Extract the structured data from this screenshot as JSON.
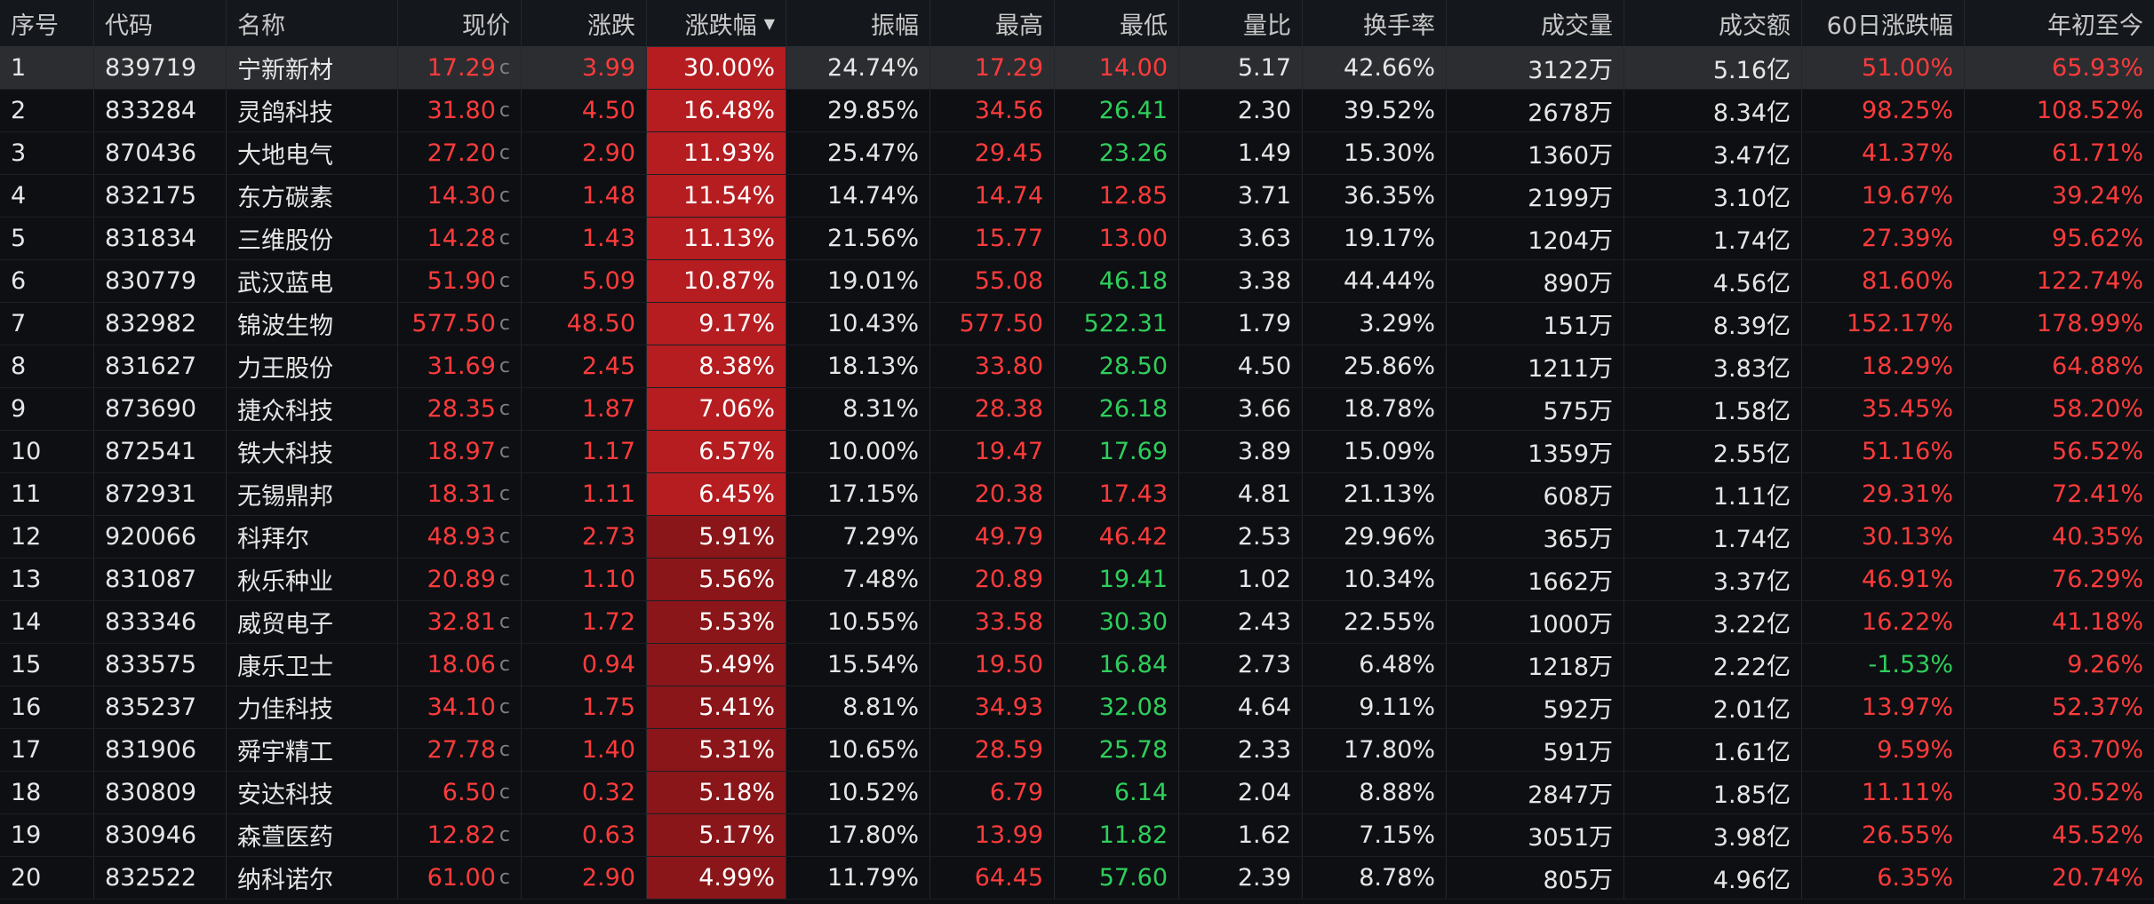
{
  "headers": {
    "idx": "序号",
    "code": "代码",
    "name": "名称",
    "price": "现价",
    "change": "涨跌",
    "pct": "涨跌幅",
    "amplitude": "振幅",
    "high": "最高",
    "low": "最低",
    "vol_ratio": "量比",
    "turnover": "换手率",
    "volume": "成交量",
    "amount": "成交额",
    "d60": "60日涨跌幅",
    "ytd": "年初至今"
  },
  "price_suffix": "c",
  "colors": {
    "up": "#ff3b3b",
    "down": "#2fcf5b",
    "pct_strong_bg": "#b51d21",
    "pct_mid_bg": "#8a161a",
    "selected_row_bg": "#2b2d31"
  },
  "rows": [
    {
      "idx": "1",
      "code": "839719",
      "name": "宁新新材",
      "price": "17.29",
      "change": "3.99",
      "pct": "30.00%",
      "amplitude": "24.74%",
      "high": "17.29",
      "low": "14.00",
      "vol_ratio": "5.17",
      "turnover": "42.66%",
      "volume": "3122万",
      "amount": "5.16亿",
      "d60": "51.00%",
      "ytd": "65.93%"
    },
    {
      "idx": "2",
      "code": "833284",
      "name": "灵鸽科技",
      "price": "31.80",
      "change": "4.50",
      "pct": "16.48%",
      "amplitude": "29.85%",
      "high": "34.56",
      "low": "26.41",
      "vol_ratio": "2.30",
      "turnover": "39.52%",
      "volume": "2678万",
      "amount": "8.34亿",
      "d60": "98.25%",
      "ytd": "108.52%"
    },
    {
      "idx": "3",
      "code": "870436",
      "name": "大地电气",
      "price": "27.20",
      "change": "2.90",
      "pct": "11.93%",
      "amplitude": "25.47%",
      "high": "29.45",
      "low": "23.26",
      "vol_ratio": "1.49",
      "turnover": "15.30%",
      "volume": "1360万",
      "amount": "3.47亿",
      "d60": "41.37%",
      "ytd": "61.71%"
    },
    {
      "idx": "4",
      "code": "832175",
      "name": "东方碳素",
      "price": "14.30",
      "change": "1.48",
      "pct": "11.54%",
      "amplitude": "14.74%",
      "high": "14.74",
      "low": "12.85",
      "vol_ratio": "3.71",
      "turnover": "36.35%",
      "volume": "2199万",
      "amount": "3.10亿",
      "d60": "19.67%",
      "ytd": "39.24%"
    },
    {
      "idx": "5",
      "code": "831834",
      "name": "三维股份",
      "price": "14.28",
      "change": "1.43",
      "pct": "11.13%",
      "amplitude": "21.56%",
      "high": "15.77",
      "low": "13.00",
      "vol_ratio": "3.63",
      "turnover": "19.17%",
      "volume": "1204万",
      "amount": "1.74亿",
      "d60": "27.39%",
      "ytd": "95.62%"
    },
    {
      "idx": "6",
      "code": "830779",
      "name": "武汉蓝电",
      "price": "51.90",
      "change": "5.09",
      "pct": "10.87%",
      "amplitude": "19.01%",
      "high": "55.08",
      "low": "46.18",
      "vol_ratio": "3.38",
      "turnover": "44.44%",
      "volume": "890万",
      "amount": "4.56亿",
      "d60": "81.60%",
      "ytd": "122.74%"
    },
    {
      "idx": "7",
      "code": "832982",
      "name": "锦波生物",
      "price": "577.50",
      "change": "48.50",
      "pct": "9.17%",
      "amplitude": "10.43%",
      "high": "577.50",
      "low": "522.31",
      "vol_ratio": "1.79",
      "turnover": "3.29%",
      "volume": "151万",
      "amount": "8.39亿",
      "d60": "152.17%",
      "ytd": "178.99%"
    },
    {
      "idx": "8",
      "code": "831627",
      "name": "力王股份",
      "price": "31.69",
      "change": "2.45",
      "pct": "8.38%",
      "amplitude": "18.13%",
      "high": "33.80",
      "low": "28.50",
      "vol_ratio": "4.50",
      "turnover": "25.86%",
      "volume": "1211万",
      "amount": "3.83亿",
      "d60": "18.29%",
      "ytd": "64.88%"
    },
    {
      "idx": "9",
      "code": "873690",
      "name": "捷众科技",
      "price": "28.35",
      "change": "1.87",
      "pct": "7.06%",
      "amplitude": "8.31%",
      "high": "28.38",
      "low": "26.18",
      "vol_ratio": "3.66",
      "turnover": "18.78%",
      "volume": "575万",
      "amount": "1.58亿",
      "d60": "35.45%",
      "ytd": "58.20%"
    },
    {
      "idx": "10",
      "code": "872541",
      "name": "铁大科技",
      "price": "18.97",
      "change": "1.17",
      "pct": "6.57%",
      "amplitude": "10.00%",
      "high": "19.47",
      "low": "17.69",
      "vol_ratio": "3.89",
      "turnover": "15.09%",
      "volume": "1359万",
      "amount": "2.55亿",
      "d60": "51.16%",
      "ytd": "56.52%"
    },
    {
      "idx": "11",
      "code": "872931",
      "name": "无锡鼎邦",
      "price": "18.31",
      "change": "1.11",
      "pct": "6.45%",
      "amplitude": "17.15%",
      "high": "20.38",
      "low": "17.43",
      "vol_ratio": "4.81",
      "turnover": "21.13%",
      "volume": "608万",
      "amount": "1.11亿",
      "d60": "29.31%",
      "ytd": "72.41%"
    },
    {
      "idx": "12",
      "code": "920066",
      "name": "科拜尔",
      "price": "48.93",
      "change": "2.73",
      "pct": "5.91%",
      "amplitude": "7.29%",
      "high": "49.79",
      "low": "46.42",
      "vol_ratio": "2.53",
      "turnover": "29.96%",
      "volume": "365万",
      "amount": "1.74亿",
      "d60": "30.13%",
      "ytd": "40.35%"
    },
    {
      "idx": "13",
      "code": "831087",
      "name": "秋乐种业",
      "price": "20.89",
      "change": "1.10",
      "pct": "5.56%",
      "amplitude": "7.48%",
      "high": "20.89",
      "low": "19.41",
      "vol_ratio": "1.02",
      "turnover": "10.34%",
      "volume": "1662万",
      "amount": "3.37亿",
      "d60": "46.91%",
      "ytd": "76.29%"
    },
    {
      "idx": "14",
      "code": "833346",
      "name": "威贸电子",
      "price": "32.81",
      "change": "1.72",
      "pct": "5.53%",
      "amplitude": "10.55%",
      "high": "33.58",
      "low": "30.30",
      "vol_ratio": "2.43",
      "turnover": "22.55%",
      "volume": "1000万",
      "amount": "3.22亿",
      "d60": "16.22%",
      "ytd": "41.18%"
    },
    {
      "idx": "15",
      "code": "833575",
      "name": "康乐卫士",
      "price": "18.06",
      "change": "0.94",
      "pct": "5.49%",
      "amplitude": "15.54%",
      "high": "19.50",
      "low": "16.84",
      "vol_ratio": "2.73",
      "turnover": "6.48%",
      "volume": "1218万",
      "amount": "2.22亿",
      "d60": "-1.53%",
      "ytd": "9.26%"
    },
    {
      "idx": "16",
      "code": "835237",
      "name": "力佳科技",
      "price": "34.10",
      "change": "1.75",
      "pct": "5.41%",
      "amplitude": "8.81%",
      "high": "34.93",
      "low": "32.08",
      "vol_ratio": "4.64",
      "turnover": "9.11%",
      "volume": "592万",
      "amount": "2.01亿",
      "d60": "13.97%",
      "ytd": "52.37%"
    },
    {
      "idx": "17",
      "code": "831906",
      "name": "舜宇精工",
      "price": "27.78",
      "change": "1.40",
      "pct": "5.31%",
      "amplitude": "10.65%",
      "high": "28.59",
      "low": "25.78",
      "vol_ratio": "2.33",
      "turnover": "17.80%",
      "volume": "591万",
      "amount": "1.61亿",
      "d60": "9.59%",
      "ytd": "63.70%"
    },
    {
      "idx": "18",
      "code": "830809",
      "name": "安达科技",
      "price": "6.50",
      "change": "0.32",
      "pct": "5.18%",
      "amplitude": "10.52%",
      "high": "6.79",
      "low": "6.14",
      "vol_ratio": "2.04",
      "turnover": "8.88%",
      "volume": "2847万",
      "amount": "1.85亿",
      "d60": "11.11%",
      "ytd": "30.52%"
    },
    {
      "idx": "19",
      "code": "830946",
      "name": "森萱医药",
      "price": "12.82",
      "change": "0.63",
      "pct": "5.17%",
      "amplitude": "17.80%",
      "high": "13.99",
      "low": "11.82",
      "vol_ratio": "1.62",
      "turnover": "7.15%",
      "volume": "3051万",
      "amount": "3.98亿",
      "d60": "26.55%",
      "ytd": "45.52%"
    },
    {
      "idx": "20",
      "code": "832522",
      "name": "纳科诺尔",
      "price": "61.00",
      "change": "2.90",
      "pct": "4.99%",
      "amplitude": "11.79%",
      "high": "64.45",
      "low": "57.60",
      "vol_ratio": "2.39",
      "turnover": "8.78%",
      "volume": "805万",
      "amount": "4.96亿",
      "d60": "6.35%",
      "ytd": "20.74%"
    }
  ]
}
